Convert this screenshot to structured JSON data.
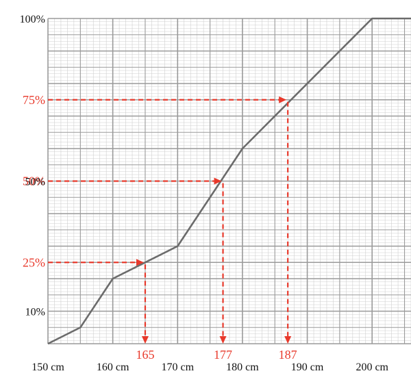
{
  "chart_data": {
    "type": "line",
    "title": "",
    "xlabel": "",
    "ylabel": "",
    "xlim": [
      150,
      206
    ],
    "ylim": [
      0,
      100
    ],
    "grid": true,
    "x_ticks": [
      {
        "value": 150,
        "label": "150 cm"
      },
      {
        "value": 160,
        "label": "160 cm"
      },
      {
        "value": 170,
        "label": "170 cm"
      },
      {
        "value": 180,
        "label": "180 cm"
      },
      {
        "value": 190,
        "label": "190 cm"
      },
      {
        "value": 200,
        "label": "200 cm"
      }
    ],
    "y_ticks": [
      {
        "value": 10,
        "label": "10%"
      },
      {
        "value": 50,
        "label": "50%"
      },
      {
        "value": 100,
        "label": "100%"
      }
    ],
    "series": [
      {
        "x": [
          150,
          155,
          160,
          170,
          180,
          200,
          206
        ],
        "y": [
          0,
          5,
          20,
          30,
          60,
          100,
          100
        ]
      }
    ],
    "annotations": [
      {
        "y": 25,
        "x": 165,
        "y_label": "25%",
        "x_label": "165"
      },
      {
        "y": 50,
        "x": 177,
        "y_label": "50%",
        "x_label": "177"
      },
      {
        "y": 75,
        "x": 187,
        "y_label": "75%",
        "x_label": "187"
      }
    ],
    "colors": {
      "curve": "#6b6b6b",
      "annotation": "#e8392b",
      "grid_major": "#9a9a9a",
      "grid_minor": "#cfcfcf",
      "text": "#111111"
    }
  }
}
